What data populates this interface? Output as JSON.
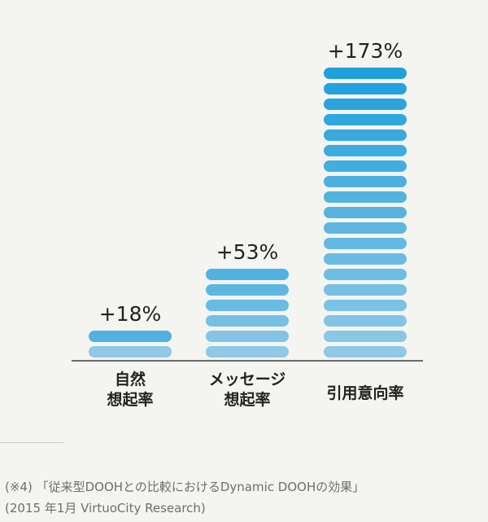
{
  "chart_data": {
    "type": "bar",
    "categories": [
      [
        "自然",
        "想起率"
      ],
      [
        "メッセージ",
        "想起率"
      ],
      [
        "引用意向率"
      ]
    ],
    "values": [
      18,
      53,
      173
    ],
    "data_labels": [
      "+18%",
      "+53%",
      "+173%"
    ],
    "title": "",
    "xlabel": "",
    "ylabel": "",
    "ylim": [
      0,
      173
    ],
    "grid": false,
    "legend": "none",
    "colors": {
      "bar_dark": "#1f9fdc",
      "bar_light": "#8fc9e6",
      "baseline": "#6a6a6a",
      "label": "#222222"
    }
  },
  "footnote": {
    "line1": "(※4) 「従来型DOOHとの比較におけるDynamic DOOHの効果」",
    "line2": "(2015 年1月 VirtuoCity Research)"
  }
}
